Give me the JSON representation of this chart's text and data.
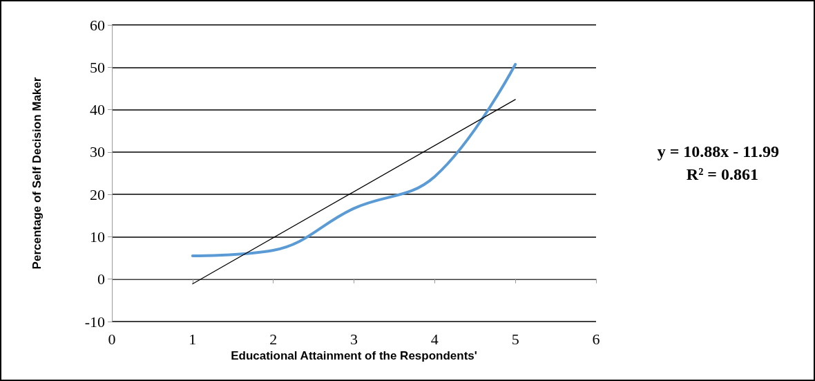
{
  "chart_data": {
    "type": "line",
    "xlabel": "Educational Attainment of the Respondents'",
    "ylabel": "Percentage of Self Decision Maker",
    "x": [
      1,
      2,
      3,
      4,
      5
    ],
    "series": [
      {
        "color": "#5b9bd5",
        "values": [
          5.5,
          6.8,
          16.7,
          24.2,
          50.7
        ]
      },
      {
        "type": "line",
        "color": "#000000",
        "x": [
          1,
          5
        ],
        "values": [
          -1.1,
          42.4
        ]
      }
    ],
    "xlim": [
      0,
      6
    ],
    "xticks": [
      0,
      1,
      2,
      3,
      4,
      5,
      6
    ],
    "ylim": [
      -10,
      60
    ],
    "yticks": [
      -10,
      0,
      10,
      20,
      30,
      40,
      50,
      60
    ],
    "grid": "y",
    "marker": "none",
    "line_style": "solid",
    "annotations": [
      "y = 10.88x - 11.99",
      "R² = 0.861"
    ]
  }
}
